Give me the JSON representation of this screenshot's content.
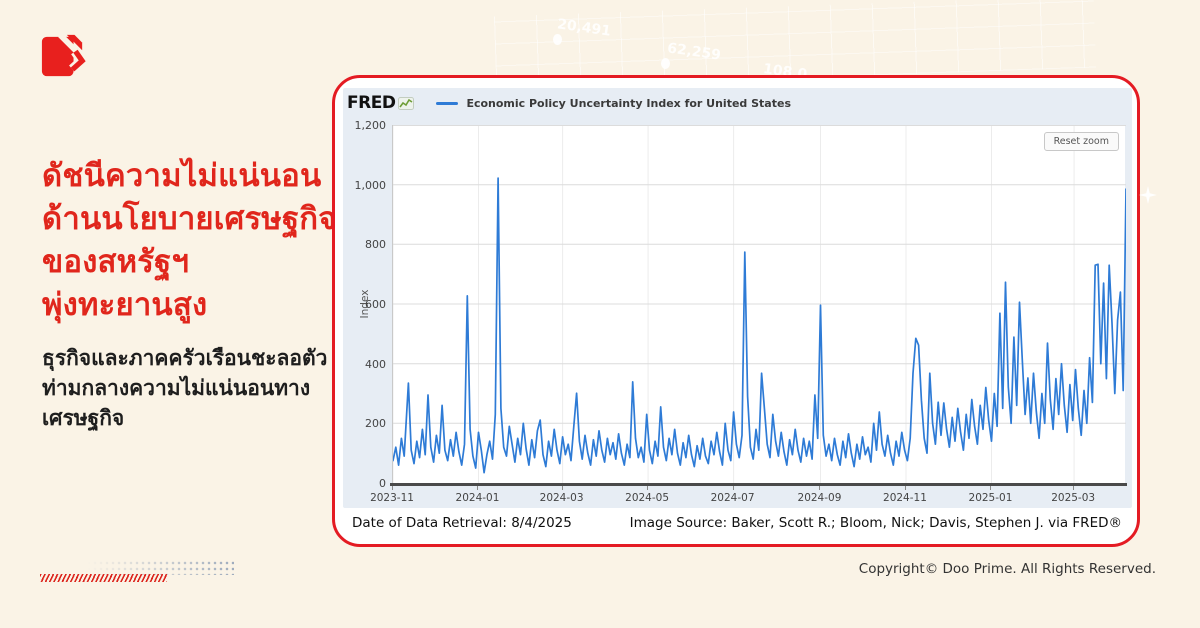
{
  "page": {
    "background": "#FAF3E6",
    "copyright": "Copyright© Doo Prime. All Rights Reserved.",
    "watermark_numbers": [
      "20,491",
      "62,259",
      "108,0"
    ]
  },
  "headline": {
    "color": "#E0261C",
    "lines": [
      "ดัชนีความไม่แน่นอน",
      "ด้านนโยบายเศรษฐกิจ",
      "ของสหรัฐฯ",
      "พุ่งทะยานสูง"
    ]
  },
  "subheadline": {
    "lines": [
      "ธุรกิจและภาคครัวเรือนชะลอตัว",
      "ท่ามกลางความไม่แน่นอนทาง",
      "เศรษฐกิจ"
    ]
  },
  "card": {
    "border_color": "#E41B23",
    "footer": {
      "retrieval": "Date of Data Retrieval: 8/4/2025",
      "source": "Image Source: Baker, Scott R.; Bloom, Nick; Davis, Stephen J. via FRED®"
    }
  },
  "chart": {
    "brand": "FRED",
    "legend_label": "Economic Policy Uncertainty Index for United States",
    "reset_button": "Reset zoom",
    "ylabel": "Index",
    "line_color": "#2E7BD6",
    "grid_color": "#DCDCDC",
    "arrow_color": "#E8201E",
    "widget_bg": "#E7EDF4"
  },
  "chart_data": {
    "type": "line",
    "title": "Economic Policy Uncertainty Index for United States",
    "ylabel": "Index",
    "ylim": [
      0,
      1200
    ],
    "grid": true,
    "legend_position": "top",
    "yticks": [
      {
        "value": 0,
        "label": "0"
      },
      {
        "value": 200,
        "label": "200"
      },
      {
        "value": 400,
        "label": "400"
      },
      {
        "value": 600,
        "label": "600"
      },
      {
        "value": 800,
        "label": "800"
      },
      {
        "value": 1000,
        "label": "1,000"
      },
      {
        "value": 1200,
        "label": "1,200"
      }
    ],
    "xticks": [
      {
        "label": "2023-11",
        "day": 0
      },
      {
        "label": "2024-01",
        "day": 61
      },
      {
        "label": "2024-03",
        "day": 121
      },
      {
        "label": "2024-05",
        "day": 182
      },
      {
        "label": "2024-07",
        "day": 243
      },
      {
        "label": "2024-09",
        "day": 305
      },
      {
        "label": "2024-11",
        "day": 366
      },
      {
        "label": "2025-01",
        "day": 427
      },
      {
        "label": "2025-03",
        "day": 486
      }
    ],
    "x_domain_days": [
      0,
      523
    ],
    "x_start_date": "2023-11-01",
    "x_end_date": "2025-04-07",
    "series": [
      {
        "name": "Economic Policy Uncertainty Index for United States",
        "points": [
          [
            0,
            75
          ],
          [
            2,
            120
          ],
          [
            4,
            60
          ],
          [
            6,
            150
          ],
          [
            8,
            90
          ],
          [
            11,
            335
          ],
          [
            13,
            110
          ],
          [
            15,
            65
          ],
          [
            17,
            140
          ],
          [
            19,
            85
          ],
          [
            21,
            180
          ],
          [
            23,
            95
          ],
          [
            25,
            295
          ],
          [
            27,
            120
          ],
          [
            29,
            70
          ],
          [
            31,
            160
          ],
          [
            33,
            100
          ],
          [
            35,
            260
          ],
          [
            37,
            110
          ],
          [
            39,
            75
          ],
          [
            41,
            145
          ],
          [
            43,
            90
          ],
          [
            45,
            170
          ],
          [
            47,
            105
          ],
          [
            49,
            60
          ],
          [
            51,
            130
          ],
          [
            53,
            627
          ],
          [
            55,
            180
          ],
          [
            57,
            90
          ],
          [
            59,
            50
          ],
          [
            61,
            170
          ],
          [
            63,
            110
          ],
          [
            65,
            35
          ],
          [
            67,
            95
          ],
          [
            69,
            140
          ],
          [
            71,
            80
          ],
          [
            73,
            230
          ],
          [
            75,
            1022
          ],
          [
            77,
            250
          ],
          [
            79,
            120
          ],
          [
            81,
            90
          ],
          [
            83,
            190
          ],
          [
            85,
            130
          ],
          [
            87,
            70
          ],
          [
            89,
            150
          ],
          [
            91,
            95
          ],
          [
            93,
            200
          ],
          [
            95,
            115
          ],
          [
            97,
            60
          ],
          [
            99,
            145
          ],
          [
            101,
            85
          ],
          [
            103,
            175
          ],
          [
            105,
            211
          ],
          [
            107,
            95
          ],
          [
            109,
            55
          ],
          [
            111,
            140
          ],
          [
            113,
            90
          ],
          [
            115,
            180
          ],
          [
            117,
            110
          ],
          [
            119,
            65
          ],
          [
            121,
            155
          ],
          [
            123,
            95
          ],
          [
            125,
            130
          ],
          [
            127,
            75
          ],
          [
            129,
            190
          ],
          [
            131,
            301
          ],
          [
            133,
            140
          ],
          [
            135,
            80
          ],
          [
            137,
            160
          ],
          [
            139,
            100
          ],
          [
            141,
            60
          ],
          [
            143,
            145
          ],
          [
            145,
            90
          ],
          [
            147,
            175
          ],
          [
            149,
            110
          ],
          [
            151,
            70
          ],
          [
            153,
            150
          ],
          [
            155,
            95
          ],
          [
            157,
            135
          ],
          [
            159,
            80
          ],
          [
            161,
            165
          ],
          [
            163,
            100
          ],
          [
            165,
            60
          ],
          [
            167,
            130
          ],
          [
            169,
            85
          ],
          [
            171,
            339
          ],
          [
            173,
            150
          ],
          [
            175,
            85
          ],
          [
            177,
            120
          ],
          [
            179,
            70
          ],
          [
            181,
            230
          ],
          [
            183,
            110
          ],
          [
            185,
            65
          ],
          [
            187,
            140
          ],
          [
            189,
            90
          ],
          [
            191,
            255
          ],
          [
            193,
            120
          ],
          [
            195,
            75
          ],
          [
            197,
            150
          ],
          [
            199,
            95
          ],
          [
            201,
            180
          ],
          [
            203,
            100
          ],
          [
            205,
            60
          ],
          [
            207,
            135
          ],
          [
            209,
            85
          ],
          [
            211,
            160
          ],
          [
            213,
            95
          ],
          [
            215,
            55
          ],
          [
            217,
            125
          ],
          [
            219,
            80
          ],
          [
            221,
            150
          ],
          [
            223,
            90
          ],
          [
            225,
            65
          ],
          [
            227,
            140
          ],
          [
            229,
            95
          ],
          [
            231,
            170
          ],
          [
            233,
            105
          ],
          [
            235,
            60
          ],
          [
            237,
            200
          ],
          [
            239,
            110
          ],
          [
            241,
            75
          ],
          [
            243,
            238
          ],
          [
            245,
            130
          ],
          [
            247,
            85
          ],
          [
            249,
            160
          ],
          [
            251,
            774
          ],
          [
            253,
            290
          ],
          [
            255,
            120
          ],
          [
            257,
            80
          ],
          [
            259,
            180
          ],
          [
            261,
            110
          ],
          [
            263,
            368
          ],
          [
            265,
            250
          ],
          [
            267,
            130
          ],
          [
            269,
            85
          ],
          [
            271,
            230
          ],
          [
            273,
            140
          ],
          [
            275,
            90
          ],
          [
            277,
            170
          ],
          [
            279,
            105
          ],
          [
            281,
            60
          ],
          [
            283,
            145
          ],
          [
            285,
            95
          ],
          [
            287,
            180
          ],
          [
            289,
            110
          ],
          [
            291,
            70
          ],
          [
            293,
            150
          ],
          [
            295,
            90
          ],
          [
            297,
            140
          ],
          [
            299,
            80
          ],
          [
            301,
            295
          ],
          [
            303,
            150
          ],
          [
            305,
            596
          ],
          [
            307,
            160
          ],
          [
            309,
            90
          ],
          [
            311,
            130
          ],
          [
            313,
            75
          ],
          [
            315,
            150
          ],
          [
            317,
            95
          ],
          [
            319,
            60
          ],
          [
            321,
            140
          ],
          [
            323,
            85
          ],
          [
            325,
            165
          ],
          [
            327,
            100
          ],
          [
            329,
            55
          ],
          [
            331,
            130
          ],
          [
            333,
            80
          ],
          [
            335,
            155
          ],
          [
            337,
            95
          ],
          [
            339,
            120
          ],
          [
            341,
            70
          ],
          [
            343,
            200
          ],
          [
            345,
            110
          ],
          [
            347,
            238
          ],
          [
            349,
            130
          ],
          [
            351,
            90
          ],
          [
            353,
            160
          ],
          [
            355,
            100
          ],
          [
            357,
            60
          ],
          [
            359,
            140
          ],
          [
            361,
            90
          ],
          [
            363,
            170
          ],
          [
            365,
            110
          ],
          [
            367,
            75
          ],
          [
            369,
            150
          ],
          [
            371,
            368
          ],
          [
            373,
            485
          ],
          [
            375,
            462
          ],
          [
            377,
            278
          ],
          [
            379,
            150
          ],
          [
            381,
            100
          ],
          [
            383,
            368
          ],
          [
            385,
            200
          ],
          [
            387,
            130
          ],
          [
            389,
            271
          ],
          [
            391,
            160
          ],
          [
            393,
            268
          ],
          [
            395,
            180
          ],
          [
            397,
            120
          ],
          [
            399,
            220
          ],
          [
            401,
            140
          ],
          [
            403,
            250
          ],
          [
            405,
            170
          ],
          [
            407,
            110
          ],
          [
            409,
            230
          ],
          [
            411,
            150
          ],
          [
            413,
            280
          ],
          [
            415,
            190
          ],
          [
            417,
            130
          ],
          [
            419,
            260
          ],
          [
            421,
            180
          ],
          [
            423,
            320
          ],
          [
            425,
            210
          ],
          [
            427,
            140
          ],
          [
            429,
            300
          ],
          [
            431,
            190
          ],
          [
            433,
            569
          ],
          [
            435,
            250
          ],
          [
            437,
            673
          ],
          [
            439,
            322
          ],
          [
            441,
            200
          ],
          [
            443,
            489
          ],
          [
            445,
            260
          ],
          [
            447,
            606
          ],
          [
            449,
            412
          ],
          [
            451,
            230
          ],
          [
            453,
            352
          ],
          [
            455,
            200
          ],
          [
            457,
            368
          ],
          [
            459,
            240
          ],
          [
            461,
            150
          ],
          [
            463,
            300
          ],
          [
            465,
            200
          ],
          [
            467,
            469
          ],
          [
            469,
            280
          ],
          [
            471,
            180
          ],
          [
            473,
            350
          ],
          [
            475,
            230
          ],
          [
            477,
            400
          ],
          [
            479,
            260
          ],
          [
            481,
            170
          ],
          [
            483,
            330
          ],
          [
            485,
            210
          ],
          [
            487,
            380
          ],
          [
            489,
            250
          ],
          [
            491,
            160
          ],
          [
            493,
            310
          ],
          [
            495,
            200
          ],
          [
            497,
            420
          ],
          [
            499,
            270
          ],
          [
            501,
            730
          ],
          [
            503,
            733
          ],
          [
            505,
            400
          ],
          [
            507,
            670
          ],
          [
            509,
            350
          ],
          [
            511,
            730
          ],
          [
            513,
            536
          ],
          [
            515,
            300
          ],
          [
            517,
            546
          ],
          [
            519,
            640
          ],
          [
            521,
            310
          ],
          [
            523,
            985
          ]
        ]
      }
    ]
  }
}
